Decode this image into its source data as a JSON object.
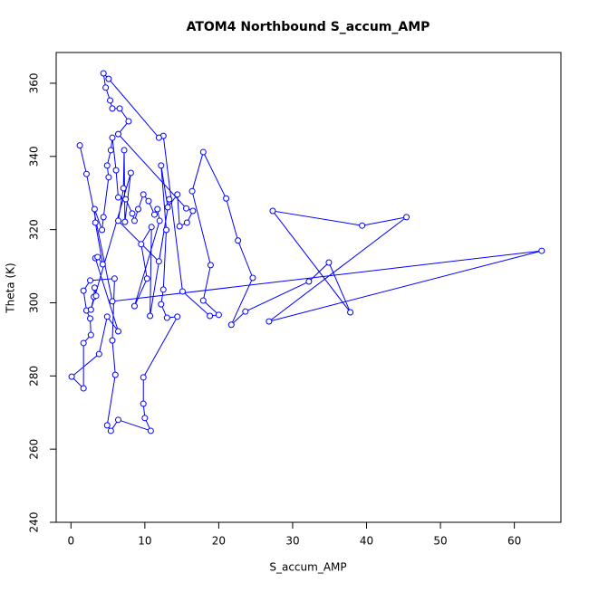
{
  "chart_data": {
    "type": "line",
    "title": "ATOM4 Northbound S_accum_AMP",
    "x_label": "S_accum_AMP",
    "y_label": "Theta (K)",
    "color": "#0000ff",
    "markers": true,
    "xlim": [
      -2,
      66.3
    ],
    "ylim": [
      240,
      368.4
    ],
    "xticks": [
      0,
      10,
      20,
      30,
      40,
      50,
      60
    ],
    "yticks": [
      240,
      260,
      280,
      300,
      320,
      340,
      360
    ],
    "x": [
      1.2,
      2.1,
      5.6,
      63.7,
      26.8,
      45.4,
      39.4,
      27.3,
      37.8,
      34.9,
      32.2,
      23.6,
      21.7,
      24.6,
      22.6,
      21,
      17.9,
      16.4,
      18.9,
      17.9,
      20,
      18.8,
      15.1,
      12.5,
      11.9,
      5.1,
      4.4,
      4.7,
      5.3,
      5.6,
      6.6,
      7.8,
      6.4,
      15.6,
      16.5,
      15.7,
      14.7,
      14.4,
      13.1,
      12.2,
      12.9,
      12.5,
      12.2,
      13,
      14.4,
      9.8,
      9.8,
      10,
      10.8,
      6.4,
      5.4,
      4.9,
      6,
      5.6,
      5.9,
      2.6,
      1.7,
      2.1,
      2.6,
      2.7,
      1.7,
      1.7,
      0.1,
      3.8,
      4.9,
      6.4,
      3.3,
      3.6,
      4.3,
      3.3,
      3.2,
      4.2,
      4.4,
      5.1,
      4.9,
      5.4,
      5.6,
      6.1,
      6.4,
      7.4,
      8.3,
      8.6,
      9.1,
      9.8,
      10.5,
      11.3,
      11.7,
      12,
      8.6,
      10.3,
      9.5,
      10.9,
      10.7,
      13.3,
      11.9,
      6.4,
      7.1,
      7.2,
      7.3,
      8.1,
      2.7,
      3.1,
      3.2,
      3.4
    ],
    "values": [
      343,
      335.2,
      300.4,
      314.2,
      294.9,
      323.4,
      321.1,
      325.1,
      297.4,
      311,
      305.8,
      297.6,
      294,
      306.8,
      317,
      328.5,
      341.2,
      330.5,
      310.3,
      300.6,
      296.7,
      296.4,
      303.1,
      345.6,
      345.1,
      361.2,
      362.7,
      358.8,
      355.3,
      353.1,
      353.1,
      349.6,
      346.1,
      325.8,
      325.1,
      321.9,
      320.9,
      329.6,
      326.1,
      337.5,
      319.9,
      303.6,
      299.6,
      295.9,
      296.2,
      279.6,
      272.4,
      268.5,
      265,
      268,
      265,
      266.5,
      280.3,
      289.7,
      306.6,
      306.1,
      303.3,
      297.9,
      295.7,
      291.2,
      289,
      276.6,
      279.8,
      286,
      296.2,
      292.2,
      312.2,
      312.5,
      310.5,
      321.9,
      325.6,
      319.9,
      323.4,
      334.3,
      337.5,
      341.7,
      345.1,
      336.2,
      328.8,
      328.3,
      324.4,
      322.4,
      325.6,
      329.6,
      327.8,
      324.1,
      325.6,
      322.4,
      299.1,
      306.6,
      316,
      320.7,
      296.4,
      328.3,
      311.3,
      322.4,
      331.3,
      341.7,
      322.1,
      335.5,
      298.1,
      301.6,
      304.1,
      301.9
    ]
  }
}
